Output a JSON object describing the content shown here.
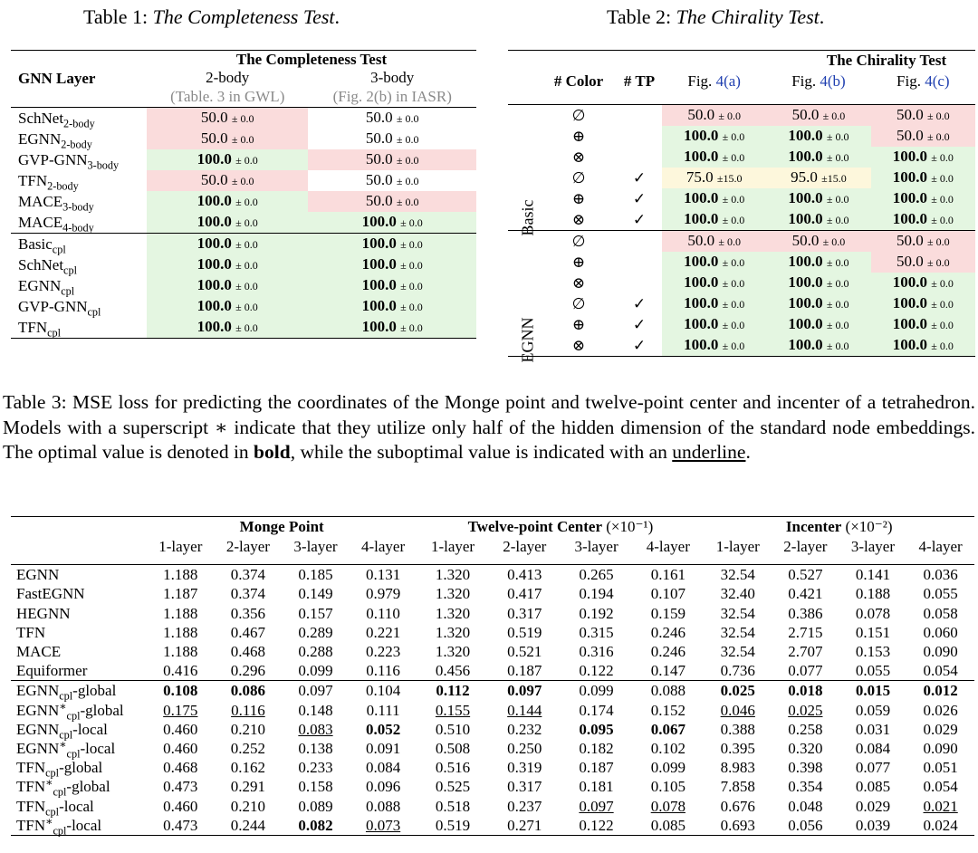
{
  "table1": {
    "caption_prefix": "Table 1: ",
    "caption_title": "The Completeness Test",
    "caption_suffix": ".",
    "header_group": "The Completeness Test",
    "row_header": "GNN Layer",
    "col1": "2-body",
    "col1_ref": "(Table. 3 in GWL)",
    "col2": "3-body",
    "col2_ref": "(Fig. 2(b) in IASR)",
    "rows_top": [
      {
        "name": "SchNet",
        "sub": "2-body",
        "v1": "50.0",
        "p1": "± 0.0",
        "c1": "pink",
        "b1": false,
        "v2": "50.0",
        "p2": "± 0.0",
        "c2": "none",
        "b2": false
      },
      {
        "name": "EGNN",
        "sub": "2-body",
        "v1": "50.0",
        "p1": "± 0.0",
        "c1": "pink",
        "b1": false,
        "v2": "50.0",
        "p2": "± 0.0",
        "c2": "none",
        "b2": false
      },
      {
        "name": "GVP-GNN",
        "sub": "3-body",
        "v1": "100.0",
        "p1": "± 0.0",
        "c1": "green",
        "b1": true,
        "v2": "50.0",
        "p2": "± 0.0",
        "c2": "pink",
        "b2": false
      },
      {
        "name": "TFN",
        "sub": "2-body",
        "v1": "50.0",
        "p1": "± 0.0",
        "c1": "pink",
        "b1": false,
        "v2": "50.0",
        "p2": "± 0.0",
        "c2": "none",
        "b2": false
      },
      {
        "name": "MACE",
        "sub": "3-body",
        "v1": "100.0",
        "p1": "± 0.0",
        "c1": "green",
        "b1": true,
        "v2": "50.0",
        "p2": "± 0.0",
        "c2": "pink",
        "b2": false
      },
      {
        "name": "MACE",
        "sub": "4-body",
        "v1": "100.0",
        "p1": "± 0.0",
        "c1": "green",
        "b1": true,
        "v2": "100.0",
        "p2": "± 0.0",
        "c2": "green",
        "b2": true
      }
    ],
    "rows_bottom": [
      {
        "name": "Basic",
        "sub": "cpl",
        "v1": "100.0",
        "p1": "± 0.0",
        "c1": "green",
        "b1": true,
        "v2": "100.0",
        "p2": "± 0.0",
        "c2": "green",
        "b2": true
      },
      {
        "name": "SchNet",
        "sub": "cpl",
        "v1": "100.0",
        "p1": "± 0.0",
        "c1": "green",
        "b1": true,
        "v2": "100.0",
        "p2": "± 0.0",
        "c2": "green",
        "b2": true
      },
      {
        "name": "EGNN",
        "sub": "cpl",
        "v1": "100.0",
        "p1": "± 0.0",
        "c1": "green",
        "b1": true,
        "v2": "100.0",
        "p2": "± 0.0",
        "c2": "green",
        "b2": true
      },
      {
        "name": "GVP-GNN",
        "sub": "cpl",
        "v1": "100.0",
        "p1": "± 0.0",
        "c1": "green",
        "b1": true,
        "v2": "100.0",
        "p2": "± 0.0",
        "c2": "green",
        "b2": true
      },
      {
        "name": "TFN",
        "sub": "cpl",
        "v1": "100.0",
        "p1": "± 0.0",
        "c1": "green",
        "b1": true,
        "v2": "100.0",
        "p2": "± 0.0",
        "c2": "green",
        "b2": true
      }
    ]
  },
  "table2": {
    "caption_prefix": "Table 2: ",
    "caption_title": "The Chirality Test",
    "caption_suffix": ".",
    "header_group": "The Chirality Test",
    "col_color": "# Color",
    "col_tp": "# TP",
    "figs": [
      {
        "prefix": "Fig. ",
        "ref": "4(a)"
      },
      {
        "prefix": "Fig. ",
        "ref": "4(b)"
      },
      {
        "prefix": "Fig. ",
        "ref": "4(c)"
      }
    ],
    "groups": [
      {
        "label": "Basic",
        "rows": [
          {
            "color": "∅",
            "tp": "",
            "cells": [
              {
                "v": "50.0",
                "p": "± 0.0",
                "c": "pink",
                "b": false
              },
              {
                "v": "50.0",
                "p": "± 0.0",
                "c": "pink",
                "b": false
              },
              {
                "v": "50.0",
                "p": "± 0.0",
                "c": "pink",
                "b": false
              }
            ]
          },
          {
            "color": "⊕",
            "tp": "",
            "cells": [
              {
                "v": "100.0",
                "p": "± 0.0",
                "c": "green",
                "b": true
              },
              {
                "v": "100.0",
                "p": "± 0.0",
                "c": "green",
                "b": true
              },
              {
                "v": "50.0",
                "p": "± 0.0",
                "c": "pink",
                "b": false
              }
            ]
          },
          {
            "color": "⊗",
            "tp": "",
            "cells": [
              {
                "v": "100.0",
                "p": "± 0.0",
                "c": "green",
                "b": true
              },
              {
                "v": "100.0",
                "p": "± 0.0",
                "c": "green",
                "b": true
              },
              {
                "v": "100.0",
                "p": "± 0.0",
                "c": "green",
                "b": true
              }
            ]
          },
          {
            "color": "∅",
            "tp": "✓",
            "cells": [
              {
                "v": "75.0",
                "p": "±15.0",
                "c": "yellow",
                "b": false
              },
              {
                "v": "95.0",
                "p": "±15.0",
                "c": "yellow",
                "b": false
              },
              {
                "v": "100.0",
                "p": "± 0.0",
                "c": "green",
                "b": true
              }
            ]
          },
          {
            "color": "⊕",
            "tp": "✓",
            "cells": [
              {
                "v": "100.0",
                "p": "± 0.0",
                "c": "green",
                "b": true
              },
              {
                "v": "100.0",
                "p": "± 0.0",
                "c": "green",
                "b": true
              },
              {
                "v": "100.0",
                "p": "± 0.0",
                "c": "green",
                "b": true
              }
            ]
          },
          {
            "color": "⊗",
            "tp": "✓",
            "cells": [
              {
                "v": "100.0",
                "p": "± 0.0",
                "c": "green",
                "b": true
              },
              {
                "v": "100.0",
                "p": "± 0.0",
                "c": "green",
                "b": true
              },
              {
                "v": "100.0",
                "p": "± 0.0",
                "c": "green",
                "b": true
              }
            ]
          }
        ]
      },
      {
        "label": "EGNN",
        "rows": [
          {
            "color": "∅",
            "tp": "",
            "cells": [
              {
                "v": "50.0",
                "p": "± 0.0",
                "c": "pink",
                "b": false
              },
              {
                "v": "50.0",
                "p": "± 0.0",
                "c": "pink",
                "b": false
              },
              {
                "v": "50.0",
                "p": "± 0.0",
                "c": "pink",
                "b": false
              }
            ]
          },
          {
            "color": "⊕",
            "tp": "",
            "cells": [
              {
                "v": "100.0",
                "p": "± 0.0",
                "c": "green",
                "b": true
              },
              {
                "v": "100.0",
                "p": "± 0.0",
                "c": "green",
                "b": true
              },
              {
                "v": "50.0",
                "p": "± 0.0",
                "c": "pink",
                "b": false
              }
            ]
          },
          {
            "color": "⊗",
            "tp": "",
            "cells": [
              {
                "v": "100.0",
                "p": "± 0.0",
                "c": "green",
                "b": true
              },
              {
                "v": "100.0",
                "p": "± 0.0",
                "c": "green",
                "b": true
              },
              {
                "v": "100.0",
                "p": "± 0.0",
                "c": "green",
                "b": true
              }
            ]
          },
          {
            "color": "∅",
            "tp": "✓",
            "cells": [
              {
                "v": "100.0",
                "p": "± 0.0",
                "c": "green",
                "b": true
              },
              {
                "v": "100.0",
                "p": "± 0.0",
                "c": "green",
                "b": true
              },
              {
                "v": "100.0",
                "p": "± 0.0",
                "c": "green",
                "b": true
              }
            ]
          },
          {
            "color": "⊕",
            "tp": "✓",
            "cells": [
              {
                "v": "100.0",
                "p": "± 0.0",
                "c": "green",
                "b": true
              },
              {
                "v": "100.0",
                "p": "± 0.0",
                "c": "green",
                "b": true
              },
              {
                "v": "100.0",
                "p": "± 0.0",
                "c": "green",
                "b": true
              }
            ]
          },
          {
            "color": "⊗",
            "tp": "✓",
            "cells": [
              {
                "v": "100.0",
                "p": "± 0.0",
                "c": "green",
                "b": true
              },
              {
                "v": "100.0",
                "p": "± 0.0",
                "c": "green",
                "b": true
              },
              {
                "v": "100.0",
                "p": "± 0.0",
                "c": "green",
                "b": true
              }
            ]
          }
        ]
      }
    ]
  },
  "table3": {
    "caption_1": "Table 3: MSE loss for predicting the coordinates of the Monge point and twelve-point center and incenter of a tetrahedron. Models with a superscript ∗ indicate that they utilize only half of the hidden dimension of the standard node embeddings. The optimal value is denoted in ",
    "caption_bold": "bold",
    "caption_2": ", while the suboptimal value is indicated with an ",
    "caption_ul": "underline",
    "caption_3": ".",
    "groups": [
      {
        "label": "Monge Point",
        "scale": ""
      },
      {
        "label": "Twelve-point Center",
        "scale": "(×10⁻¹)"
      },
      {
        "label": "Incenter",
        "scale": "(×10⁻²)"
      }
    ],
    "layers": [
      "1-layer",
      "2-layer",
      "3-layer",
      "4-layer"
    ],
    "rows_top": [
      {
        "name": "EGNN",
        "sub": "",
        "star": false,
        "suffix": "",
        "vals": [
          "1.188",
          "0.374",
          "0.185",
          "0.131",
          "1.320",
          "0.413",
          "0.265",
          "0.161",
          "32.54",
          "0.527",
          "0.141",
          "0.036"
        ],
        "fmt": "............"
      },
      {
        "name": "FastEGNN",
        "sub": "",
        "star": false,
        "suffix": "",
        "vals": [
          "1.187",
          "0.374",
          "0.149",
          "0.979",
          "1.320",
          "0.417",
          "0.194",
          "0.107",
          "32.40",
          "0.421",
          "0.188",
          "0.055"
        ],
        "fmt": "............"
      },
      {
        "name": "HEGNN",
        "sub": "",
        "star": false,
        "suffix": "",
        "vals": [
          "1.188",
          "0.356",
          "0.157",
          "0.110",
          "1.320",
          "0.317",
          "0.192",
          "0.159",
          "32.54",
          "0.386",
          "0.078",
          "0.058"
        ],
        "fmt": "............"
      },
      {
        "name": "TFN",
        "sub": "",
        "star": false,
        "suffix": "",
        "vals": [
          "1.188",
          "0.467",
          "0.289",
          "0.221",
          "1.320",
          "0.519",
          "0.315",
          "0.246",
          "32.54",
          "2.715",
          "0.151",
          "0.060"
        ],
        "fmt": "............"
      },
      {
        "name": "MACE",
        "sub": "",
        "star": false,
        "suffix": "",
        "vals": [
          "1.188",
          "0.468",
          "0.288",
          "0.223",
          "1.320",
          "0.521",
          "0.316",
          "0.246",
          "32.54",
          "2.707",
          "0.153",
          "0.090"
        ],
        "fmt": "............"
      },
      {
        "name": "Equiformer",
        "sub": "",
        "star": false,
        "suffix": "",
        "vals": [
          "0.416",
          "0.296",
          "0.099",
          "0.116",
          "0.456",
          "0.187",
          "0.122",
          "0.147",
          "0.736",
          "0.077",
          "0.055",
          "0.054"
        ],
        "fmt": "............"
      }
    ],
    "rows_bottom": [
      {
        "name": "EGNN",
        "sub": "cpl",
        "star": false,
        "suffix": "-global",
        "vals": [
          "0.108",
          "0.086",
          "0.097",
          "0.104",
          "0.112",
          "0.097",
          "0.099",
          "0.088",
          "0.025",
          "0.018",
          "0.015",
          "0.012"
        ],
        "fmt": "bb..bb..bbbb"
      },
      {
        "name": "EGNN",
        "sub": "cpl",
        "star": true,
        "suffix": "-global",
        "vals": [
          "0.175",
          "0.116",
          "0.148",
          "0.111",
          "0.155",
          "0.144",
          "0.174",
          "0.152",
          "0.046",
          "0.025",
          "0.059",
          "0.026"
        ],
        "fmt": "uu..uu..uu.."
      },
      {
        "name": "EGNN",
        "sub": "cpl",
        "star": false,
        "suffix": "-local",
        "vals": [
          "0.460",
          "0.210",
          "0.083",
          "0.052",
          "0.510",
          "0.232",
          "0.095",
          "0.067",
          "0.388",
          "0.258",
          "0.031",
          "0.029"
        ],
        "fmt": "..ub..bb...."
      },
      {
        "name": "EGNN",
        "sub": "cpl",
        "star": true,
        "suffix": "-local",
        "vals": [
          "0.460",
          "0.252",
          "0.138",
          "0.091",
          "0.508",
          "0.250",
          "0.182",
          "0.102",
          "0.395",
          "0.320",
          "0.084",
          "0.090"
        ],
        "fmt": "............"
      },
      {
        "name": "TFN",
        "sub": "cpl",
        "star": false,
        "suffix": "-global",
        "vals": [
          "0.468",
          "0.162",
          "0.233",
          "0.084",
          "0.516",
          "0.319",
          "0.187",
          "0.099",
          "8.983",
          "0.398",
          "0.077",
          "0.051"
        ],
        "fmt": "............"
      },
      {
        "name": "TFN",
        "sub": "cpl",
        "star": true,
        "suffix": "-global",
        "vals": [
          "0.473",
          "0.291",
          "0.158",
          "0.096",
          "0.525",
          "0.317",
          "0.181",
          "0.105",
          "7.858",
          "0.354",
          "0.085",
          "0.054"
        ],
        "fmt": "............"
      },
      {
        "name": "TFN",
        "sub": "cpl",
        "star": false,
        "suffix": "-local",
        "vals": [
          "0.460",
          "0.210",
          "0.089",
          "0.088",
          "0.518",
          "0.237",
          "0.097",
          "0.078",
          "0.676",
          "0.048",
          "0.029",
          "0.021"
        ],
        "fmt": "......uu...u"
      },
      {
        "name": "TFN",
        "sub": "cpl",
        "star": true,
        "suffix": "-local",
        "vals": [
          "0.473",
          "0.244",
          "0.082",
          "0.073",
          "0.519",
          "0.271",
          "0.122",
          "0.085",
          "0.693",
          "0.056",
          "0.039",
          "0.024"
        ],
        "fmt": "..bu........"
      }
    ]
  }
}
